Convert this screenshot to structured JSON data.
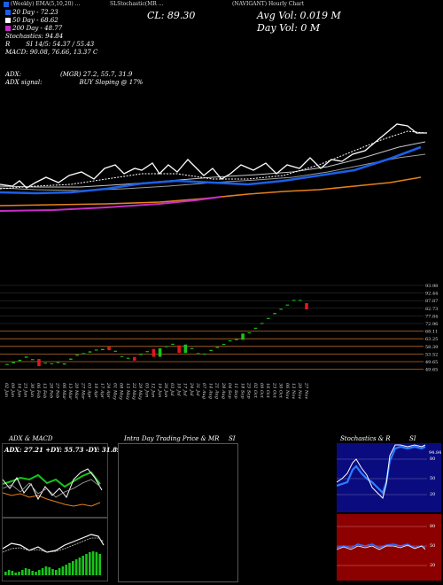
{
  "header": {
    "left": "(Weekly) EMA(5,10,20) ...",
    "mid": "SLStochastic(MR ...",
    "right": "(NAVIGANT) Hourly Chart"
  },
  "info": {
    "ma20": "20 Day - 72.23",
    "ma50": "50 Day - 68.62",
    "ma200": "200 Day - 48.77",
    "stochastic": "Stochastics: 94.84",
    "si": "SI 14/5: 54.37 / 55.43",
    "macd": "MACD: 90.08, 76.66, 13.37 C",
    "adx": "ADX:",
    "adx_vals": "(MGR) 27.2, 55.7, 31.9",
    "adx_signal": "ADX signal:",
    "buy_signal": "BUY Sloping @ 17%",
    "close": "CL: 89.30",
    "avg_vol": "Avg Vol: 0.019 M",
    "day_vol": "Day Vol: 0   M"
  },
  "colors": {
    "ma_blue": "#1a5fe6",
    "ma_orange": "#e8801a",
    "ma_magenta": "#c32fc3",
    "ma_gray": "#b0b0b0",
    "price_white": "#ffffff",
    "candle_up": "#19c419",
    "candle_down": "#e01818",
    "stoch_bg": "#0b0b80",
    "si_bg": "#8c0000",
    "macd_green": "#19c419"
  },
  "price_labels": [
    "93.98",
    "92.44",
    "87.87",
    "82.73",
    "77.84",
    "72.96",
    "68.11",
    "63.25",
    "58.39",
    "53.52",
    "49.65",
    "49.65"
  ],
  "dates": [
    "02 Jan",
    "09 Jan",
    "16 Jan",
    "23 Jan",
    "30 Jan",
    "06 Feb",
    "13 Feb",
    "20 Feb",
    "27 Feb",
    "06 Mar",
    "13 Mar",
    "20 Mar",
    "27 Mar",
    "03 Apr",
    "10 Apr",
    "17 Apr",
    "24 Apr",
    "01 May",
    "08 May",
    "15 May",
    "22 May",
    "29 May",
    "05 Jun",
    "12 Jun",
    "19 Jun",
    "26 Jun",
    "03 Jul",
    "10 Jul",
    "17 Jul",
    "24 Jul",
    "31 Jul",
    "07 Aug",
    "14 Aug",
    "21 Aug",
    "28 Aug",
    "04 Sep",
    "11 Sep",
    "18 Sep",
    "25 Sep",
    "02 Oct",
    "09 Oct",
    "16 Oct",
    "23 Oct",
    "30 Oct",
    "06 Nov",
    "13 Nov",
    "20 Nov",
    "27 Nov"
  ],
  "panels": {
    "adx_title": "ADX  & MACD",
    "adx_vals": "ADX: 27.21  +DY: 55.73  -DY: 31.89",
    "intra_title": "Intra  Day Trading Price  & MR",
    "intra_si": "SI",
    "stoch_title": "Stochastics & R",
    "stoch_si": "SI",
    "stoch_ticks": [
      "80",
      "50",
      "20"
    ],
    "si_ticks": [
      "80",
      "50",
      "20"
    ],
    "stoch_val": "94.84"
  },
  "chart_data": {
    "type": "line",
    "series": [
      {
        "values": [
          59.2,
          59.8,
          58.8,
          60.0,
          59.5,
          59.0,
          58.6,
          59.6,
          60.8,
          60.2,
          61.0,
          61.8,
          61.0,
          60.8,
          62.2,
          63.0,
          62.4,
          63.6,
          64.4,
          63.0,
          62.0,
          63.2,
          64.8,
          64.4,
          65.0,
          63.8,
          65.2,
          66.0,
          65.5,
          66.4,
          67.2,
          68.6,
          69.3,
          69.0,
          70.5,
          72.1,
          71.4,
          73.0,
          74.4,
          74.8,
          76.5,
          78.2,
          80.6,
          83.0,
          85.5,
          88.5,
          91.6,
          89.3
        ]
      }
    ],
    "candles": [
      {
        "o": 54.2,
        "c": 54.7
      },
      {
        "o": 55.0,
        "c": 55.6
      },
      {
        "o": 56.2,
        "c": 56.8
      },
      {
        "o": 57.8,
        "c": 58.4
      },
      {
        "o": 56.6,
        "c": 57.1
      },
      {
        "o": 57.2,
        "c": 53.6
      },
      {
        "o": 55.0,
        "c": 55.3
      },
      {
        "o": 54.6,
        "c": 55.0
      },
      {
        "o": 55.2,
        "c": 55.6
      },
      {
        "o": 54.4,
        "c": 55.0
      },
      {
        "o": 56.8,
        "c": 57.4
      },
      {
        "o": 58.8,
        "c": 59.3
      },
      {
        "o": 59.6,
        "c": 60.1
      },
      {
        "o": 60.4,
        "c": 61.0
      },
      {
        "o": 61.4,
        "c": 61.9
      },
      {
        "o": 61.6,
        "c": 62.2
      },
      {
        "o": 63.4,
        "c": 61.6
      },
      {
        "o": 60.8,
        "c": 61.3
      },
      {
        "o": 58.2,
        "c": 58.6
      },
      {
        "o": 57.3,
        "c": 57.8
      },
      {
        "o": 58.2,
        "c": 56.4
      },
      {
        "o": 59.2,
        "c": 59.7
      },
      {
        "o": 60.6,
        "c": 61.1
      },
      {
        "o": 62.2,
        "c": 58.3
      },
      {
        "o": 58.3,
        "c": 62.5
      },
      {
        "o": 63.1,
        "c": 63.6
      },
      {
        "o": 64.3,
        "c": 64.8
      },
      {
        "o": 64.0,
        "c": 60.2
      },
      {
        "o": 60.2,
        "c": 64.4
      },
      {
        "o": 62.1,
        "c": 62.6
      },
      {
        "o": 59.6,
        "c": 60.1
      },
      {
        "o": 59.4,
        "c": 59.9
      },
      {
        "o": 61.2,
        "c": 61.7
      },
      {
        "o": 62.7,
        "c": 63.2
      },
      {
        "o": 64.2,
        "c": 64.7
      },
      {
        "o": 66.0,
        "c": 66.5
      },
      {
        "o": 66.6,
        "c": 67.1
      },
      {
        "o": 66.8,
        "c": 69.9
      },
      {
        "o": 70.0,
        "c": 70.5
      },
      {
        "o": 72.3,
        "c": 72.8
      },
      {
        "o": 74.7,
        "c": 75.2
      },
      {
        "o": 77.2,
        "c": 77.7
      },
      {
        "o": 79.6,
        "c": 80.2
      },
      {
        "o": 81.8,
        "c": 82.3
      },
      {
        "o": 83.9,
        "c": 84.4
      },
      {
        "o": 86.2,
        "c": 86.7
      },
      {
        "o": 86.2,
        "c": 86.7
      },
      {
        "o": 85.1,
        "c": 82.0
      }
    ],
    "ylim": [
      49.65,
      93.98
    ]
  }
}
